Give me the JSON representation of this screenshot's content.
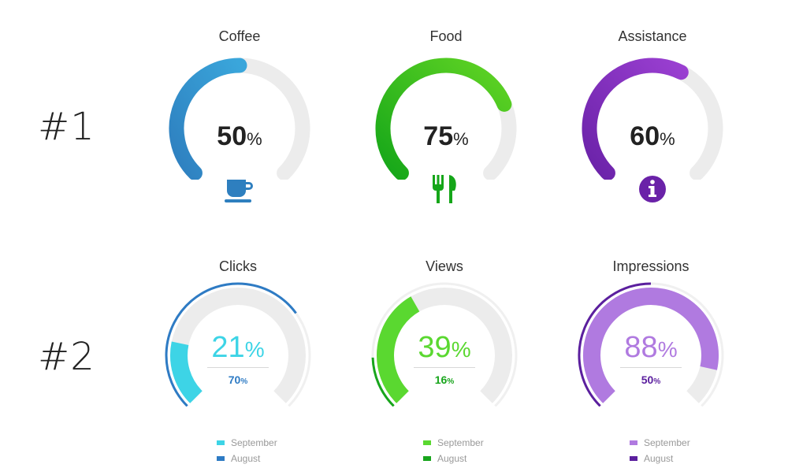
{
  "rows": [
    {
      "label": "#1"
    },
    {
      "label": "#2"
    }
  ],
  "row1": [
    {
      "title": "Coffee",
      "value": 50,
      "value_label": "50",
      "pct_sign": "%",
      "color_from": "#3aa6db",
      "color_to": "#2e7fbf",
      "icon": "coffee-cup-icon"
    },
    {
      "title": "Food",
      "value": 75,
      "value_label": "75",
      "pct_sign": "%",
      "color_from": "#61d424",
      "color_to": "#15a619",
      "icon": "fork-knife-icon"
    },
    {
      "title": "Assistance",
      "value": 60,
      "value_label": "60",
      "pct_sign": "%",
      "color_from": "#9a3fd1",
      "color_to": "#6a22a8",
      "icon": "info-icon"
    }
  ],
  "row2": [
    {
      "title": "Clicks",
      "main_value": 21,
      "main_label": "21",
      "sub_value": 70,
      "sub_label": "70",
      "pct_sign": "%",
      "main_color": "#3dd4e6",
      "sub_color": "#2e7bc4",
      "legend": [
        {
          "label": "September",
          "color": "#3dd4e6"
        },
        {
          "label": "August",
          "color": "#2e7bc4"
        }
      ]
    },
    {
      "title": "Views",
      "main_value": 39,
      "main_label": "39",
      "sub_value": 16,
      "sub_label": "16",
      "pct_sign": "%",
      "main_color": "#5ad830",
      "sub_color": "#18a51c",
      "legend": [
        {
          "label": "September",
          "color": "#5ad830"
        },
        {
          "label": "August",
          "color": "#18a51c"
        }
      ]
    },
    {
      "title": "Impressions",
      "main_value": 88,
      "main_label": "88",
      "sub_value": 50,
      "sub_label": "50",
      "pct_sign": "%",
      "main_color": "#b07ae0",
      "sub_color": "#5b1f9e",
      "legend": [
        {
          "label": "September",
          "color": "#b07ae0"
        },
        {
          "label": "August",
          "color": "#5b1f9e"
        }
      ]
    }
  ]
}
